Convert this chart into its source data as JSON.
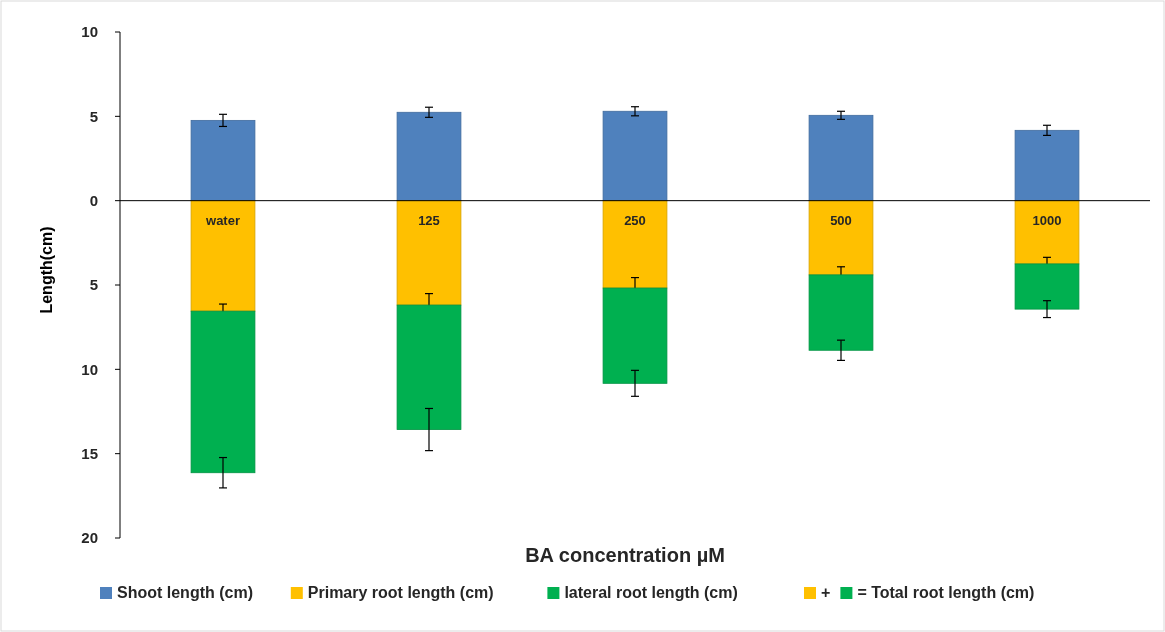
{
  "chart_data": {
    "type": "bar",
    "stacked": true,
    "xlabel": "BA concentration µM",
    "ylabel": "Length(cm)",
    "categories": [
      "water",
      "125",
      "250",
      "500",
      "1000"
    ],
    "ylim": [
      -20,
      10
    ],
    "yticks": [
      {
        "value": -20,
        "label": "20"
      },
      {
        "value": -15,
        "label": "15"
      },
      {
        "value": -10,
        "label": "10"
      },
      {
        "value": -5,
        "label": "5"
      },
      0,
      5,
      10
    ],
    "series": [
      {
        "name": "Shoot length (cm)",
        "color": "#4f81bd",
        "values": [
          4.76,
          5.24,
          5.3,
          5.06,
          4.17
        ],
        "errors": [
          0.36,
          0.3,
          0.27,
          0.24,
          0.3
        ]
      },
      {
        "name": "Primary root length (cm)",
        "color": "#ffc000",
        "values": [
          -6.55,
          -6.19,
          -5.18,
          -4.4,
          -3.75
        ],
        "errors": [
          0.42,
          0.68,
          0.62,
          0.48,
          0.39
        ]
      },
      {
        "name": "lateral root length (cm)",
        "color": "#00b050",
        "values": [
          -9.58,
          -7.38,
          -5.65,
          -4.47,
          -2.68
        ],
        "errors": [
          0.9,
          1.25,
          0.77,
          0.6,
          0.5
        ]
      }
    ],
    "annotations": [
      "+",
      "= Total root length (cm)"
    ],
    "legend": "bottom",
    "grid": false
  }
}
